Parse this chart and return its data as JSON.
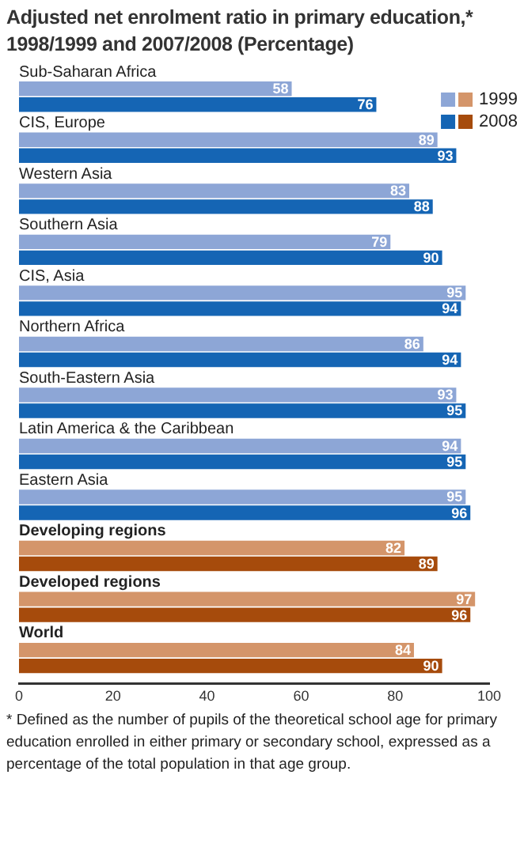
{
  "chart_data": {
    "type": "bar",
    "orientation": "horizontal",
    "title": "Adjusted net enrolment ratio in primary education,* 1998/1999 and 2007/2008 (Percentage)",
    "categories": [
      "Sub-Saharan Africa",
      "CIS, Europe",
      "Western Asia",
      "Southern Asia",
      "CIS, Asia",
      "Northern Africa",
      "South-Eastern Asia",
      "Latin America & the Caribbean",
      "Eastern Asia",
      "Developing regions",
      "Developed regions",
      "World"
    ],
    "series": [
      {
        "name": "1999",
        "color": "#8da6d6",
        "colors": [
          "#8da6d6",
          "#8da6d6",
          "#8da6d6",
          "#8da6d6",
          "#8da6d6",
          "#8da6d6",
          "#8da6d6",
          "#8da6d6",
          "#8da6d6",
          "#d4956a",
          "#d4956a",
          "#d4956a"
        ],
        "values": [
          58,
          89,
          83,
          79,
          95,
          86,
          93,
          94,
          95,
          82,
          97,
          84
        ]
      },
      {
        "name": "2008",
        "color": "#1565b4",
        "colors": [
          "#1565b4",
          "#1565b4",
          "#1565b4",
          "#1565b4",
          "#1565b4",
          "#1565b4",
          "#1565b4",
          "#1565b4",
          "#1565b4",
          "#a64b0c",
          "#a64b0c",
          "#a64b0c"
        ],
        "values": [
          76,
          93,
          88,
          90,
          94,
          94,
          95,
          95,
          96,
          89,
          96,
          90
        ]
      }
    ],
    "xlim": [
      0,
      100
    ],
    "xticks": [
      0,
      20,
      40,
      60,
      80,
      100
    ],
    "grid": false,
    "legend": "top right",
    "data_labels": true,
    "annotations": [
      "* Defined as the number of pupils of the theoretical school age for primary education enrolled in either primary or secondary school, expressed as a percentage of the total population in that age group."
    ]
  }
}
